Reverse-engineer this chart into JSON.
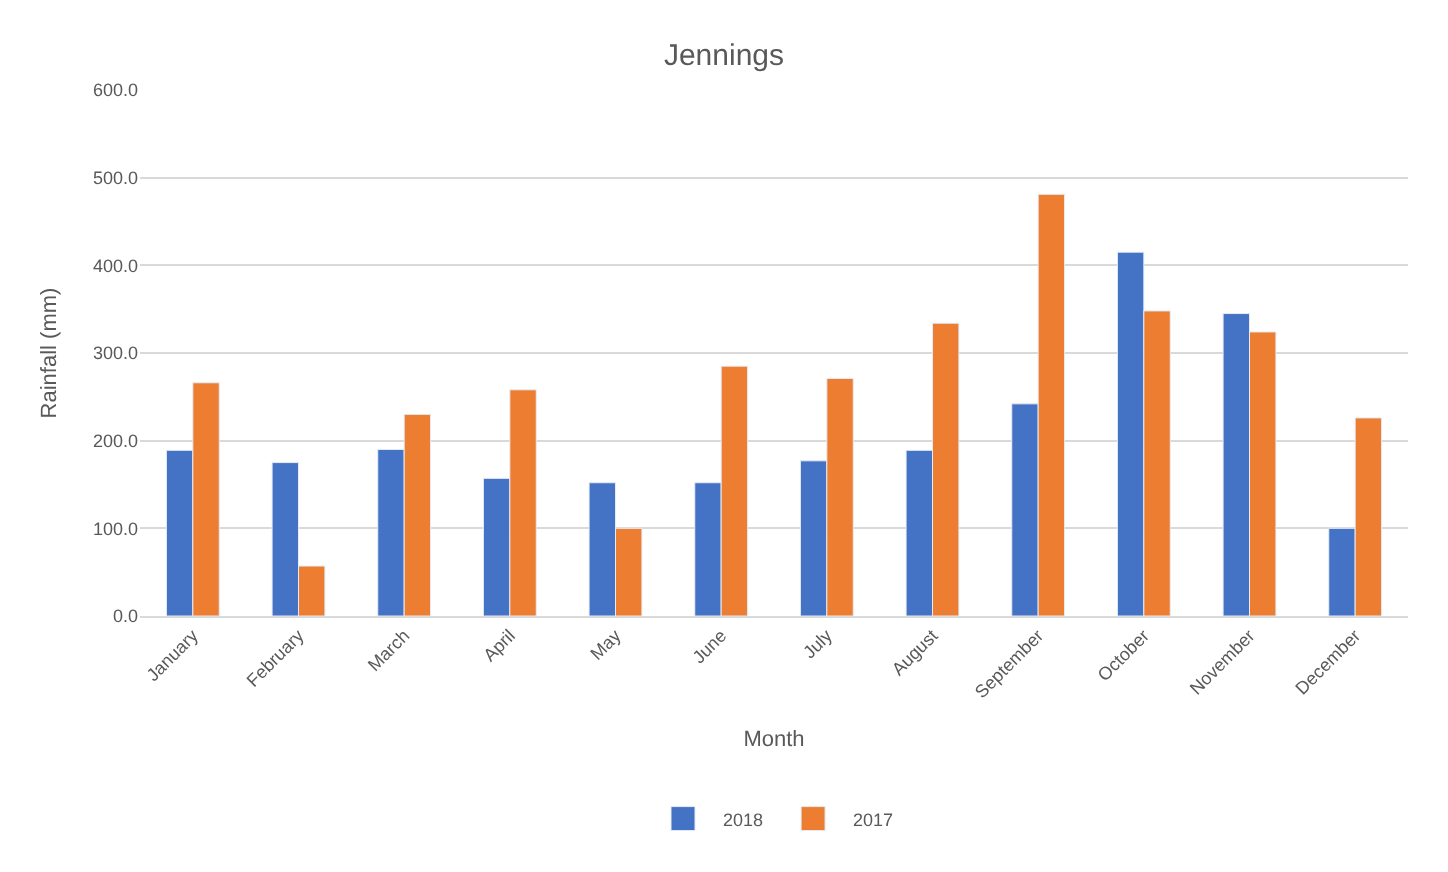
{
  "chart_data": {
    "type": "bar",
    "title": "Jennings",
    "xlabel": "Month",
    "ylabel": "Rainfall (mm)",
    "categories": [
      "January",
      "February",
      "March",
      "April",
      "May",
      "June",
      "July",
      "August",
      "September",
      "October",
      "November",
      "December"
    ],
    "series": [
      {
        "name": "2018",
        "color": "#4472c4",
        "values": [
          189,
          175,
          190,
          157,
          152,
          152,
          177,
          189,
          242,
          415,
          345,
          100
        ]
      },
      {
        "name": "2017",
        "color": "#ed7d31",
        "values": [
          266,
          57,
          230,
          258,
          100,
          285,
          271,
          334,
          481,
          348,
          324,
          226
        ]
      }
    ],
    "ylim": [
      0,
      600
    ],
    "yticks": [
      {
        "value": 0,
        "label": "0.0"
      },
      {
        "value": 100,
        "label": "100.0"
      },
      {
        "value": 200,
        "label": "200.0"
      },
      {
        "value": 300,
        "label": "300.0"
      },
      {
        "value": 400,
        "label": "400.0"
      },
      {
        "value": 500,
        "label": "500.0"
      },
      {
        "value": 600,
        "label": "600.0"
      }
    ],
    "grid": "y",
    "legend": "bottom"
  }
}
